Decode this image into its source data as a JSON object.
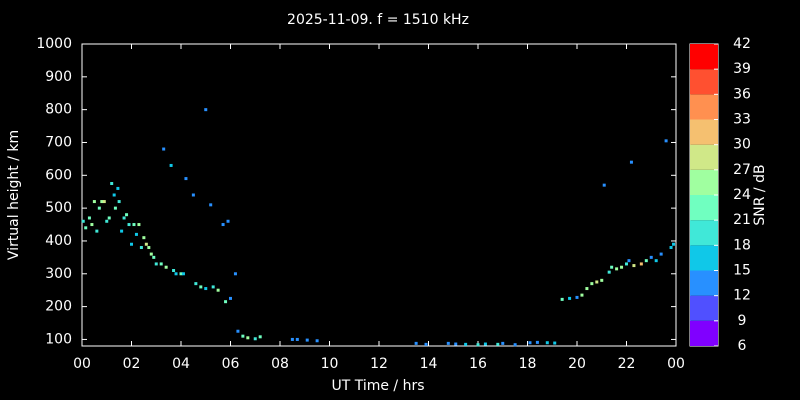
{
  "chart_data": {
    "type": "scatter",
    "title": "2025-11-09. f = 1510 kHz",
    "x_label": "UT Time / hrs",
    "y_label": "Virtual height / km",
    "colorbar_label": "SNR / dB",
    "xlim": [
      0,
      24
    ],
    "xticks": [
      {
        "value": 0,
        "label": "00"
      },
      {
        "value": 2,
        "label": "02"
      },
      {
        "value": 4,
        "label": "04"
      },
      {
        "value": 6,
        "label": "06"
      },
      {
        "value": 8,
        "label": "08"
      },
      10,
      12,
      14,
      16,
      18,
      20,
      22,
      {
        "value": 24,
        "label": "00"
      }
    ],
    "ylim": [
      80,
      1000
    ],
    "yticks": [
      100,
      200,
      300,
      400,
      500,
      600,
      700,
      800,
      900,
      1000
    ],
    "clim": [
      6,
      42
    ],
    "cticks": [
      6,
      9,
      12,
      15,
      18,
      21,
      24,
      27,
      30,
      33,
      36,
      39,
      42
    ],
    "colors": [
      "#8000ff",
      "#5050ff",
      "#2890ff",
      "#10c8e8",
      "#40e8d8",
      "#70ffc0",
      "#a0ffa0",
      "#d0e888",
      "#f5c070",
      "#ff9050",
      "#ff5030",
      "#ff0000"
    ],
    "x": [
      0.05,
      0.15,
      0.3,
      0.4,
      0.5,
      0.6,
      0.7,
      0.8,
      0.9,
      1.0,
      1.1,
      1.2,
      1.3,
      1.35,
      1.5,
      1.45,
      1.6,
      1.7,
      1.8,
      1.9,
      2.0,
      2.1,
      2.2,
      2.3,
      2.4,
      2.5,
      2.6,
      2.7,
      2.8,
      2.9,
      3.0,
      3.2,
      3.3,
      3.4,
      3.6,
      3.7,
      3.8,
      4.0,
      4.1,
      4.2,
      4.5,
      4.6,
      4.8,
      5.0,
      5.0,
      5.2,
      5.3,
      5.5,
      5.7,
      5.8,
      5.9,
      6.0,
      6.2,
      6.3,
      6.5,
      6.7,
      7.0,
      7.2,
      8.5,
      8.7,
      9.1,
      9.5,
      13.5,
      13.9,
      14.8,
      15.1,
      15.5,
      16.0,
      16.3,
      16.8,
      17.0,
      17.5,
      18.1,
      18.4,
      18.8,
      19.1,
      19.4,
      19.7,
      20.0,
      20.2,
      20.4,
      20.6,
      20.8,
      21.0,
      21.1,
      21.3,
      21.4,
      21.6,
      21.8,
      22.0,
      22.1,
      22.2,
      22.3,
      22.6,
      22.8,
      23.0,
      23.2,
      23.4,
      23.6,
      23.8,
      23.9
    ],
    "y": [
      460,
      440,
      470,
      450,
      520,
      430,
      500,
      520,
      520,
      460,
      470,
      575,
      540,
      500,
      520,
      560,
      430,
      470,
      480,
      450,
      390,
      450,
      420,
      450,
      380,
      410,
      390,
      380,
      360,
      350,
      330,
      330,
      680,
      320,
      630,
      310,
      300,
      300,
      300,
      590,
      540,
      270,
      260,
      800,
      255,
      510,
      260,
      250,
      450,
      215,
      460,
      225,
      300,
      125,
      110,
      105,
      102,
      108,
      100,
      100,
      98,
      96,
      88,
      85,
      88,
      86,
      85,
      84,
      86,
      85,
      88,
      84,
      90,
      91,
      90,
      89,
      222,
      225,
      228,
      235,
      255,
      270,
      275,
      280,
      570,
      305,
      320,
      315,
      320,
      330,
      340,
      640,
      325,
      330,
      340,
      350,
      340,
      360,
      705,
      380,
      390
    ],
    "snr": [
      18,
      21,
      21,
      24,
      24,
      18,
      21,
      24,
      27,
      18,
      21,
      18,
      15,
      21,
      18,
      15,
      15,
      18,
      21,
      18,
      15,
      21,
      15,
      24,
      18,
      24,
      27,
      24,
      24,
      21,
      18,
      21,
      12,
      24,
      15,
      18,
      15,
      21,
      15,
      12,
      12,
      18,
      21,
      12,
      15,
      12,
      18,
      24,
      12,
      21,
      12,
      12,
      12,
      12,
      21,
      24,
      18,
      21,
      12,
      12,
      12,
      12,
      12,
      12,
      12,
      12,
      15,
      18,
      15,
      18,
      12,
      12,
      12,
      12,
      15,
      15,
      21,
      15,
      12,
      24,
      24,
      24,
      27,
      24,
      12,
      18,
      21,
      24,
      24,
      18,
      12,
      12,
      27,
      30,
      21,
      12,
      15,
      12,
      12,
      15,
      15
    ]
  }
}
